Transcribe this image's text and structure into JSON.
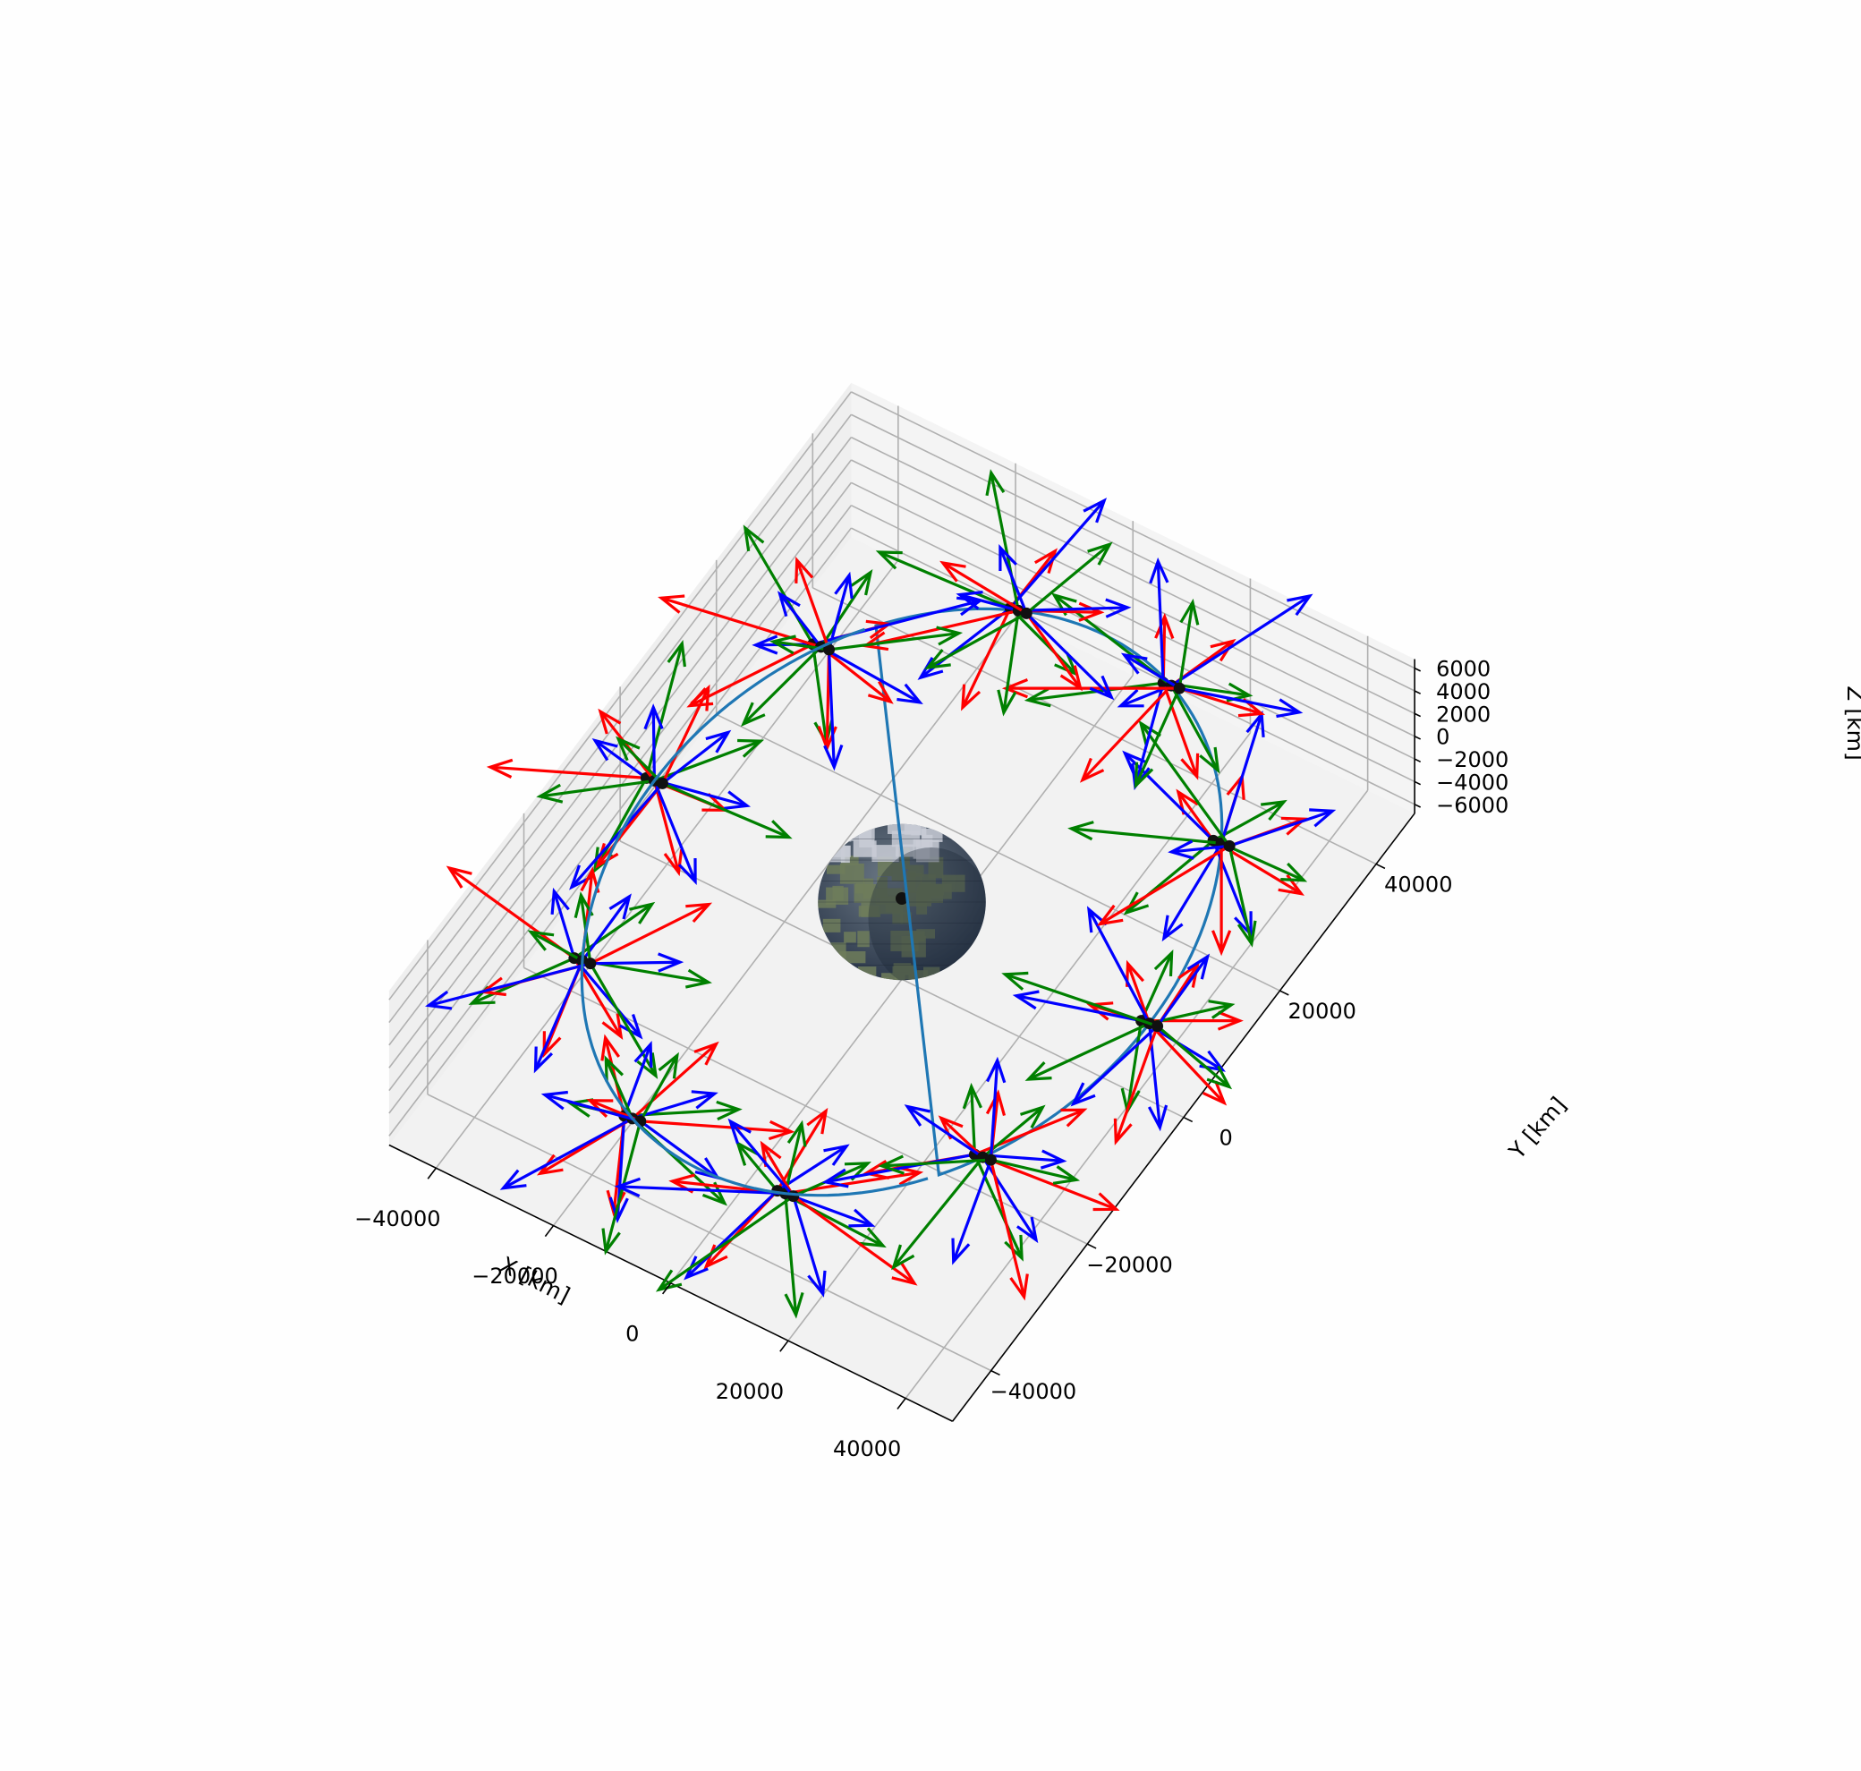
{
  "chart_data": {
    "type": "3d-line-quiver",
    "title": "",
    "axes": {
      "x": {
        "label": "X [km]",
        "ticks": [
          -40000,
          -20000,
          0,
          20000,
          40000
        ],
        "tick_labels": [
          "−40000",
          "−20000",
          "0",
          "20000",
          "40000"
        ],
        "lim": [
          -48000,
          48000
        ]
      },
      "y": {
        "label": "Y [km]",
        "ticks": [
          -40000,
          -20000,
          0,
          20000,
          40000
        ],
        "tick_labels": [
          "−40000",
          "−20000",
          "0",
          "20000",
          "40000"
        ],
        "lim": [
          -48000,
          48000
        ]
      },
      "z": {
        "label": "Z [km]",
        "ticks": [
          -6000,
          -4000,
          -2000,
          0,
          2000,
          4000,
          6000
        ],
        "tick_labels": [
          "−6000",
          "−4000",
          "−2000",
          "0",
          "2000",
          "4000",
          "6000"
        ],
        "lim": [
          -6800,
          6800
        ]
      }
    },
    "grid": true,
    "orbit": {
      "type": "circle",
      "radius_km": 42164,
      "z": 0
    },
    "earth": {
      "radius_km": 6371,
      "center": [
        0,
        0,
        0
      ]
    },
    "satellite_frames": [
      {
        "angle_deg": 0
      },
      {
        "angle_deg": 36
      },
      {
        "angle_deg": 72
      },
      {
        "angle_deg": 108
      },
      {
        "angle_deg": 144
      },
      {
        "angle_deg": 180
      },
      {
        "angle_deg": 216
      },
      {
        "angle_deg": 252
      },
      {
        "angle_deg": 288
      },
      {
        "angle_deg": 324
      }
    ],
    "arrow_colors": [
      "#ff0000",
      "#008000",
      "#0000ff"
    ],
    "orbit_color": "#1f77b4",
    "pane_color": "#f2f2f2",
    "grid_color": "#b0b0b0",
    "earth_colors": [
      "#3b4a5e",
      "#6f7d5a",
      "#c9ccd6"
    ]
  }
}
